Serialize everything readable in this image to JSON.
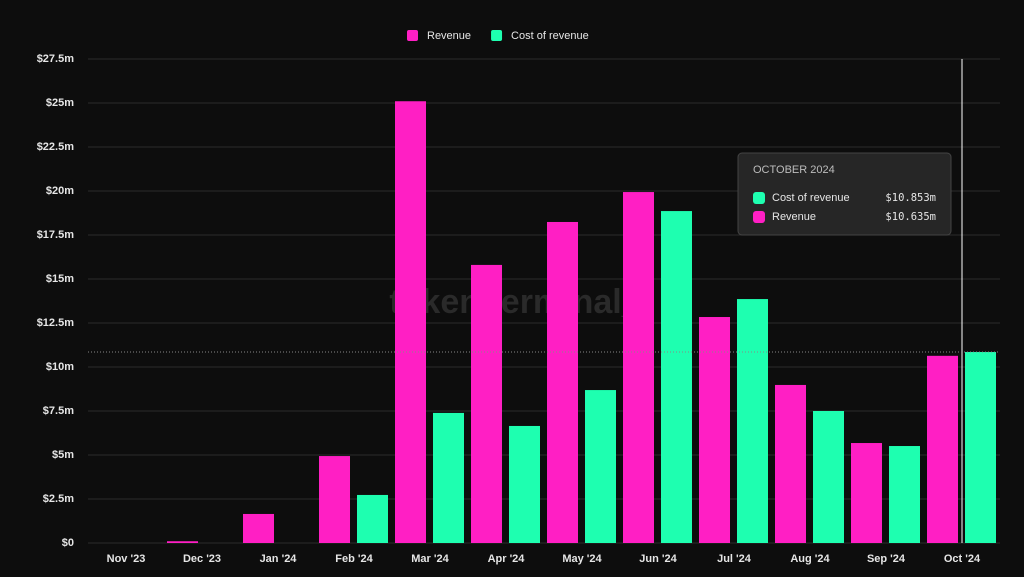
{
  "chart_data": {
    "type": "bar",
    "watermark": "token terminal_",
    "categories": [
      "Nov '23",
      "Dec '23",
      "Jan '24",
      "Feb '24",
      "Mar '24",
      "Apr '24",
      "May '24",
      "Jun '24",
      "Jul '24",
      "Aug '24",
      "Sep '24",
      "Oct '24"
    ],
    "series": [
      {
        "name": "Revenue",
        "color": "#ff1fc4",
        "values": [
          0,
          0.1,
          1.65,
          4.94,
          25.1,
          15.8,
          18.24,
          19.94,
          12.84,
          8.98,
          5.68,
          10.635
        ],
        "value_labels": [
          null,
          null,
          null,
          null,
          null,
          null,
          null,
          null,
          null,
          null,
          null,
          "$10.635m"
        ]
      },
      {
        "name": "Cost of revenue",
        "color": "#1effb0",
        "values": [
          0,
          0,
          0,
          2.73,
          7.39,
          6.65,
          8.69,
          18.86,
          13.86,
          7.5,
          5.51,
          10.853
        ],
        "value_labels": [
          null,
          null,
          null,
          null,
          null,
          null,
          null,
          null,
          null,
          null,
          null,
          "$10.853m"
        ]
      }
    ],
    "ylim": [
      0,
      27.5
    ],
    "yticks": [
      {
        "value": 0,
        "label": "$0"
      },
      {
        "value": 2.5,
        "label": "$2.5m"
      },
      {
        "value": 5,
        "label": "$5m"
      },
      {
        "value": 7.5,
        "label": "$7.5m"
      },
      {
        "value": 10,
        "label": "$10m"
      },
      {
        "value": 12.5,
        "label": "$12.5m"
      },
      {
        "value": 15,
        "label": "$15m"
      },
      {
        "value": 17.5,
        "label": "$17.5m"
      },
      {
        "value": 20,
        "label": "$20m"
      },
      {
        "value": 22.5,
        "label": "$22.5m"
      },
      {
        "value": 25,
        "label": "$25m"
      },
      {
        "value": 27.5,
        "label": "$27.5m"
      }
    ],
    "grid": true,
    "legend": "top",
    "tooltip": {
      "title": "OCTOBER 2024"
    }
  }
}
